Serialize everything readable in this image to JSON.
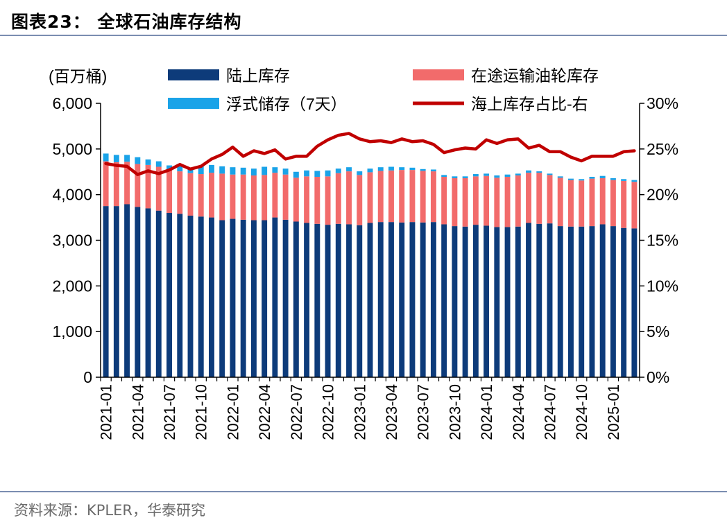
{
  "header": {
    "title": "图表23：  全球石油库存结构"
  },
  "footer": {
    "source": "资料来源：KPLER，华泰研究"
  },
  "colors": {
    "land": "#0d3b7a",
    "transit": "#f26b6b",
    "floating": "#1aa3e8",
    "share": "#c00000",
    "axis": "#000000",
    "rule": "#7a8db0"
  },
  "chart_data": {
    "type": "bar",
    "stacked": true,
    "y_unit_label": "(百万桶)",
    "ylim": [
      0,
      6000
    ],
    "yticks": [
      "0",
      "1,000",
      "2,000",
      "3,000",
      "4,000",
      "5,000",
      "6,000"
    ],
    "y2lim": [
      0,
      30
    ],
    "y2ticks": [
      "0%",
      "5%",
      "10%",
      "15%",
      "20%",
      "25%",
      "30%"
    ],
    "xtick_labels": [
      "2021-01",
      "2021-04",
      "2021-07",
      "2021-10",
      "2022-01",
      "2022-04",
      "2022-07",
      "2022-10",
      "2023-01",
      "2023-04",
      "2023-07",
      "2023-10",
      "2024-01",
      "2024-04",
      "2024-07",
      "2024-10",
      "2025-01"
    ],
    "grid": false,
    "legend_position": "top",
    "categories": [
      "2021-01",
      "2021-02",
      "2021-03",
      "2021-04",
      "2021-05",
      "2021-06",
      "2021-07",
      "2021-08",
      "2021-09",
      "2021-10",
      "2021-11",
      "2021-12",
      "2022-01",
      "2022-02",
      "2022-03",
      "2022-04",
      "2022-05",
      "2022-06",
      "2022-07",
      "2022-08",
      "2022-09",
      "2022-10",
      "2022-11",
      "2022-12",
      "2023-01",
      "2023-02",
      "2023-03",
      "2023-04",
      "2023-05",
      "2023-06",
      "2023-07",
      "2023-08",
      "2023-09",
      "2023-10",
      "2023-11",
      "2023-12",
      "2024-01",
      "2024-02",
      "2024-03",
      "2024-04",
      "2024-05",
      "2024-06",
      "2024-07",
      "2024-08",
      "2024-09",
      "2024-10",
      "2024-11",
      "2024-12",
      "2025-01",
      "2025-02",
      "2025-03"
    ],
    "series": [
      {
        "name": "陆上库存",
        "kind": "bar",
        "axis": "left",
        "values": [
          3750,
          3750,
          3790,
          3730,
          3700,
          3650,
          3600,
          3580,
          3540,
          3520,
          3500,
          3440,
          3470,
          3450,
          3440,
          3440,
          3500,
          3450,
          3410,
          3380,
          3360,
          3340,
          3360,
          3350,
          3330,
          3380,
          3400,
          3400,
          3390,
          3400,
          3390,
          3400,
          3350,
          3310,
          3300,
          3340,
          3320,
          3290,
          3290,
          3300,
          3380,
          3360,
          3370,
          3310,
          3300,
          3300,
          3310,
          3350,
          3310,
          3270,
          3260
        ]
      },
      {
        "name": "在途运输油轮库存",
        "kind": "bar",
        "axis": "left",
        "values": [
          980,
          960,
          930,
          940,
          950,
          960,
          930,
          930,
          930,
          930,
          980,
          1020,
          970,
          990,
          980,
          990,
          980,
          990,
          960,
          1020,
          1030,
          1060,
          1110,
          1160,
          1100,
          1110,
          1120,
          1130,
          1150,
          1140,
          1130,
          1110,
          1040,
          1050,
          1060,
          1060,
          1090,
          1080,
          1100,
          1120,
          1100,
          1120,
          1060,
          1060,
          1020,
          1010,
          1040,
          1010,
          1010,
          1030,
          1020
        ]
      },
      {
        "name": "浮式储存（7天）",
        "kind": "bar",
        "axis": "left",
        "values": [
          170,
          160,
          150,
          150,
          120,
          120,
          110,
          110,
          110,
          190,
          170,
          160,
          160,
          150,
          150,
          180,
          120,
          130,
          130,
          130,
          130,
          130,
          100,
          90,
          80,
          80,
          80,
          80,
          60,
          50,
          40,
          40,
          40,
          40,
          40,
          50,
          50,
          50,
          50,
          40,
          50,
          30,
          30,
          30,
          30,
          30,
          40,
          50,
          40,
          40,
          40
        ]
      },
      {
        "name": "海上库存占比-右",
        "kind": "line",
        "axis": "right",
        "values": [
          23.4,
          23.2,
          23.1,
          22.2,
          22.6,
          22.3,
          22.7,
          23.3,
          22.8,
          23.1,
          23.9,
          24.4,
          25.2,
          24.2,
          24.8,
          24.5,
          24.9,
          23.9,
          24.2,
          24.2,
          25.3,
          26.0,
          26.5,
          26.7,
          26.1,
          25.8,
          25.9,
          25.7,
          26.1,
          25.8,
          25.9,
          25.5,
          24.6,
          24.9,
          25.1,
          25.0,
          26.0,
          25.6,
          26.0,
          26.1,
          25.1,
          25.4,
          24.7,
          24.7,
          24.1,
          23.7,
          24.2,
          24.2,
          24.2,
          24.7,
          24.8
        ]
      }
    ]
  }
}
